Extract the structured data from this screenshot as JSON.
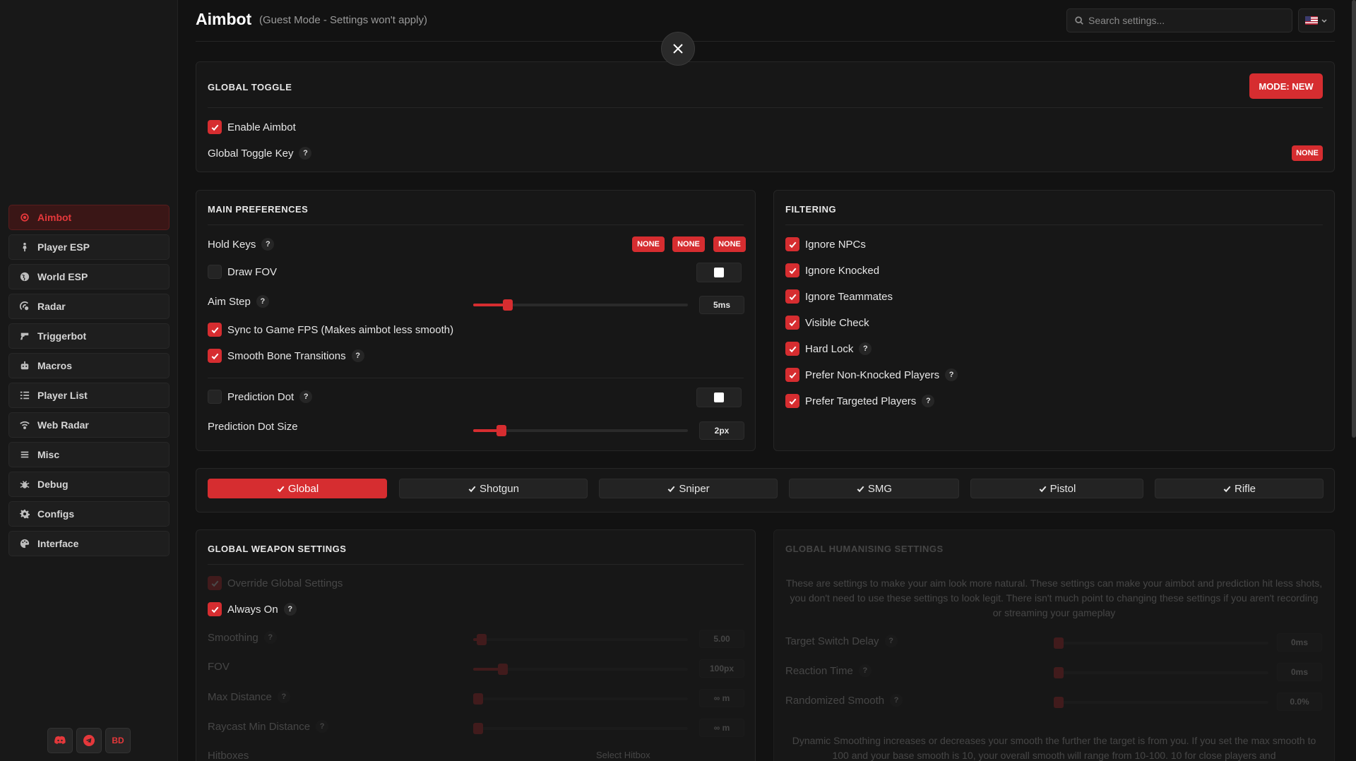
{
  "header": {
    "title": "Aimbot",
    "subtitle": "(Guest Mode - Settings won't apply)",
    "search_placeholder": "Search settings...",
    "language_icon": "us-flag-icon"
  },
  "sidebar": {
    "items": [
      {
        "label": "Aimbot",
        "icon": "crosshair-icon",
        "active": true
      },
      {
        "label": "Player ESP",
        "icon": "person-icon"
      },
      {
        "label": "World ESP",
        "icon": "globe-icon"
      },
      {
        "label": "Radar",
        "icon": "radar-icon"
      },
      {
        "label": "Triggerbot",
        "icon": "gun-icon"
      },
      {
        "label": "Macros",
        "icon": "robot-icon"
      },
      {
        "label": "Player List",
        "icon": "list-icon"
      },
      {
        "label": "Web Radar",
        "icon": "wifi-icon"
      },
      {
        "label": "Misc",
        "icon": "menu-icon"
      },
      {
        "label": "Debug",
        "icon": "bug-icon"
      },
      {
        "label": "Configs",
        "icon": "cog-icon"
      },
      {
        "label": "Interface",
        "icon": "palette-icon"
      }
    ],
    "socials": {
      "discord": "discord-icon",
      "telegram": "telegram-icon",
      "bd": "BD"
    }
  },
  "global_toggle": {
    "title": "GLOBAL TOGGLE",
    "mode_button": "MODE: NEW",
    "enable_label": "Enable Aimbot",
    "enable_checked": true,
    "toggle_key_label": "Global Toggle Key",
    "toggle_key_value": "NONE",
    "help": "?"
  },
  "main_prefs": {
    "title": "MAIN PREFERENCES",
    "hold_keys_label": "Hold Keys",
    "hold_keys": [
      "NONE",
      "NONE",
      "NONE"
    ],
    "draw_fov_label": "Draw FOV",
    "draw_fov_checked": false,
    "aim_step_label": "Aim Step",
    "aim_step_value": "5ms",
    "aim_step_fraction": 0.16,
    "sync_fps_label": "Sync to Game FPS (Makes aimbot less smooth)",
    "sync_fps_checked": true,
    "smooth_bone_label": "Smooth Bone Transitions",
    "smooth_bone_checked": true,
    "pred_dot_label": "Prediction Dot",
    "pred_dot_checked": false,
    "pred_dot_size_label": "Prediction Dot Size",
    "pred_dot_size_value": "2px",
    "pred_dot_size_fraction": 0.13
  },
  "filtering": {
    "title": "FILTERING",
    "items": [
      {
        "label": "Ignore NPCs",
        "checked": true,
        "help": false
      },
      {
        "label": "Ignore Knocked",
        "checked": true,
        "help": false
      },
      {
        "label": "Ignore Teammates",
        "checked": true,
        "help": false
      },
      {
        "label": "Visible Check",
        "checked": true,
        "help": false
      },
      {
        "label": "Hard Lock",
        "checked": true,
        "help": true
      },
      {
        "label": "Prefer Non-Knocked Players",
        "checked": true,
        "help": true
      },
      {
        "label": "Prefer Targeted Players",
        "checked": true,
        "help": true
      }
    ]
  },
  "weapon_tabs": {
    "active": "Global",
    "tabs": [
      "Global",
      "Shotgun",
      "Sniper",
      "SMG",
      "Pistol",
      "Rifle"
    ]
  },
  "weapon_settings": {
    "title": "GLOBAL WEAPON SETTINGS",
    "override_label": "Override Global Settings",
    "always_on_label": "Always On",
    "always_on_checked": true,
    "smoothing_label": "Smoothing",
    "smoothing_value": "5.00",
    "fov_label": "FOV",
    "fov_value": "100px",
    "max_distance_label": "Max Distance",
    "max_distance_value": "∞ m",
    "raycast_label": "Raycast Min Distance",
    "raycast_value": "∞ m",
    "hitboxes_label": "Hitboxes",
    "hitboxes_value": "Select Hitbox"
  },
  "humanising": {
    "title": "GLOBAL HUMANISING SETTINGS",
    "description": "These are settings to make your aim look more natural. These settings can make your aimbot and prediction hit less shots, you don't need to use these settings to look legit. There isn't much point to changing these settings if you aren't recording or streaming your gameplay",
    "target_switch_label": "Target Switch Delay",
    "target_switch_value": "0ms",
    "reaction_label": "Reaction Time",
    "reaction_value": "0ms",
    "randomized_label": "Randomized Smooth",
    "randomized_value": "0.0%",
    "dynamic_text": "Dynamic Smoothing increases or decreases your smooth the further the target is from you. If you set the max smooth to 100 and your base smooth is 10, your overall smooth will range from 10-100. 10 for close players and"
  }
}
